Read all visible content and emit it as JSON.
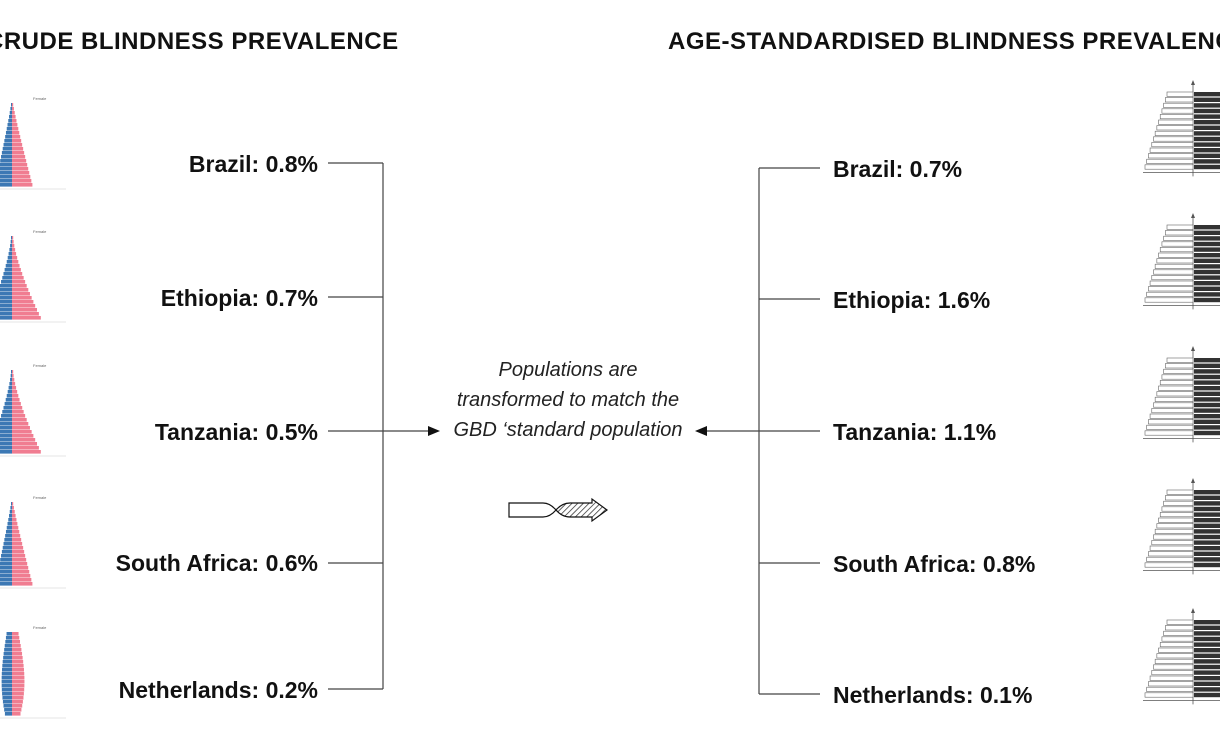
{
  "left_heading": "CRUDE BLINDNESS PREVALENCE",
  "right_heading": "AGE-STANDARDISED BLINDNESS PREVALENCE",
  "crude": [
    {
      "label": "Brazil: 0.8%"
    },
    {
      "label": "Ethiopia: 0.7%"
    },
    {
      "label": "Tanzania: 0.5%"
    },
    {
      "label": "South Africa: 0.6%"
    },
    {
      "label": "Netherlands: 0.2%"
    }
  ],
  "standardised": [
    {
      "label": "Brazil: 0.7%"
    },
    {
      "label": "Ethiopia: 1.6%"
    },
    {
      "label": "Tanzania: 1.1%"
    },
    {
      "label": "South Africa: 0.8%"
    },
    {
      "label": "Netherlands: 0.1%"
    }
  ],
  "middle_text": "Populations are transformed to match the GBD ‘standard population",
  "pyramid_tag": "Female",
  "colors": {
    "male": "#3c78b4",
    "female": "#f07d91",
    "line": "#444444",
    "std_bar": "#333333"
  }
}
